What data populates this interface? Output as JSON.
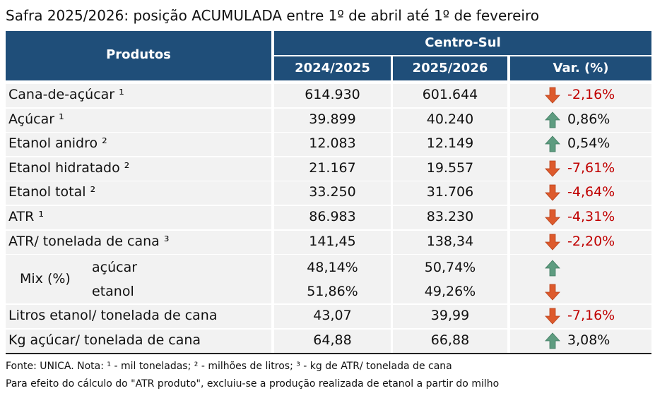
{
  "title": "Safra 2025/2026: posição ACUMULADA entre 1º de abril até 1º de fevereiro",
  "table": {
    "header": {
      "products": "Produtos",
      "region": "Centro-Sul",
      "columns": [
        "2024/2025",
        "2025/2026",
        "Var. (%)"
      ]
    },
    "rows": [
      [
        "Cana-de-açúcar ¹",
        "614.930",
        "601.644",
        "-2,16%"
      ],
      [
        "Açúcar ¹",
        "39.899",
        "40.240",
        "0,86%"
      ],
      [
        "Etanol anidro ²",
        "12.083",
        "12.149",
        "0,54%"
      ],
      [
        "Etanol hidratado ²",
        "21.167",
        "19.557",
        "-7,61%"
      ],
      [
        "Etanol total ²",
        "33.250",
        "31.706",
        "-4,64%"
      ],
      [
        "ATR ¹",
        "86.983",
        "83.230",
        "-4,31%"
      ],
      [
        "ATR/ tonelada de cana ³",
        "141,45",
        "138,34",
        "-2,20%"
      ]
    ],
    "mix": {
      "label": "Mix (%)",
      "rows": [
        [
          "açúcar",
          "48,14%",
          "50,74%"
        ],
        [
          "etanol",
          "51,86%",
          "49,26%"
        ]
      ]
    },
    "rows_end": [
      [
        "Litros etanol/ tonelada de cana",
        "43,07",
        "39,99",
        "-7,16%"
      ],
      [
        "Kg açúcar/ tonelada de cana",
        "64,88",
        "66,88",
        "3,08%"
      ]
    ]
  },
  "notes": [
    "Fonte: UNICA. Nota: ¹ - mil toneladas; ² - milhões de litros; ³ - kg de ATR/ tonelada de cana",
    "Para efeito do cálculo do \"ATR produto\", excluiu-se a produção realizada de etanol a partir do milho"
  ]
}
